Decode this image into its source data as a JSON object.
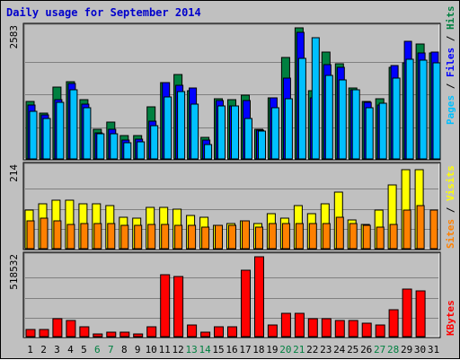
{
  "title": "Daily usage for September 2014",
  "colors": {
    "background": "#c0c0c0",
    "hits": "#008040",
    "files": "#0000ff",
    "pages": "#00c0ff",
    "visits": "#ffff00",
    "sites": "#ff8000",
    "kbytes": "#ff0000",
    "weekend_day_label": "#008040",
    "weekday_label": "#000080"
  },
  "chart_data": [
    {
      "type": "bar",
      "title": "Daily usage for September 2014",
      "categories": [
        "1",
        "2",
        "3",
        "4",
        "5",
        "6",
        "7",
        "8",
        "9",
        "10",
        "11",
        "12",
        "13",
        "14",
        "15",
        "16",
        "17",
        "18",
        "19",
        "20",
        "21",
        "22",
        "23",
        "24",
        "25",
        "26",
        "27",
        "28",
        "29",
        "30",
        "31"
      ],
      "weekend_days": [
        "6",
        "7",
        "13",
        "14",
        "20",
        "21",
        "27",
        "28"
      ],
      "ymax_label": "2583",
      "ylim": [
        0,
        2583
      ],
      "legend": [
        "Hits",
        "Files",
        "Pages"
      ],
      "series": [
        {
          "name": "Hits",
          "values": [
            1140,
            900,
            1410,
            1520,
            1170,
            590,
            720,
            460,
            460,
            1020,
            1500,
            1670,
            1340,
            430,
            1190,
            1170,
            1260,
            580,
            1210,
            2000,
            2583,
            1350,
            2110,
            1870,
            1400,
            1140,
            1190,
            1810,
            1900,
            2270,
            2090
          ]
        },
        {
          "name": "Files",
          "values": [
            1060,
            860,
            1160,
            1480,
            1080,
            520,
            590,
            370,
            390,
            750,
            1500,
            1450,
            1390,
            380,
            1150,
            1050,
            1150,
            570,
            1200,
            1600,
            2500,
            1200,
            1850,
            1800,
            1360,
            1110,
            1060,
            1840,
            2310,
            2080,
            2100
          ]
        },
        {
          "name": "Pages",
          "values": [
            930,
            800,
            1110,
            1360,
            1000,
            490,
            500,
            320,
            330,
            660,
            1220,
            1320,
            1080,
            290,
            1040,
            1050,
            800,
            550,
            1000,
            1180,
            1980,
            2390,
            1640,
            1560,
            1360,
            1000,
            1100,
            1600,
            1970,
            1950,
            1890
          ]
        }
      ]
    },
    {
      "type": "bar",
      "categories": [
        "1",
        "2",
        "3",
        "4",
        "5",
        "6",
        "7",
        "8",
        "9",
        "10",
        "11",
        "12",
        "13",
        "14",
        "15",
        "16",
        "17",
        "18",
        "19",
        "20",
        "21",
        "22",
        "23",
        "24",
        "25",
        "26",
        "27",
        "28",
        "29",
        "30",
        "31"
      ],
      "ymax_label": "214",
      "ylim": [
        0,
        214
      ],
      "legend": [
        "Visits",
        "Sites"
      ],
      "series": [
        {
          "name": "Visits",
          "values": [
            100,
            118,
            126,
            126,
            118,
            118,
            112,
            83,
            79,
            108,
            108,
            103,
            86,
            83,
            61,
            66,
            74,
            66,
            92,
            79,
            114,
            92,
            118,
            147,
            75,
            64,
            100,
            166,
            206,
            206,
            0
          ]
        },
        {
          "name": "Sites",
          "values": [
            72,
            79,
            72,
            64,
            66,
            66,
            66,
            61,
            61,
            64,
            64,
            61,
            61,
            57,
            61,
            61,
            74,
            57,
            66,
            66,
            66,
            66,
            66,
            83,
            66,
            61,
            57,
            64,
            100,
            114,
            100
          ]
        }
      ]
    },
    {
      "type": "bar",
      "categories": [
        "1",
        "2",
        "3",
        "4",
        "5",
        "6",
        "7",
        "8",
        "9",
        "10",
        "11",
        "12",
        "13",
        "14",
        "15",
        "16",
        "17",
        "18",
        "19",
        "20",
        "21",
        "22",
        "23",
        "24",
        "25",
        "26",
        "27",
        "28",
        "29",
        "30",
        "31"
      ],
      "ymax_label": "518532",
      "ylim": [
        0,
        518532
      ],
      "legend": [
        "KBytes"
      ],
      "series": [
        {
          "name": "KBytes",
          "values": [
            48000,
            48000,
            118000,
            104000,
            62000,
            18000,
            27000,
            27000,
            18000,
            62000,
            403000,
            390000,
            76000,
            27000,
            62000,
            62000,
            433000,
            518532,
            76000,
            152000,
            152000,
            118000,
            118000,
            104000,
            104000,
            90000,
            76000,
            172000,
            306000,
            298000,
            0
          ]
        }
      ]
    }
  ]
}
